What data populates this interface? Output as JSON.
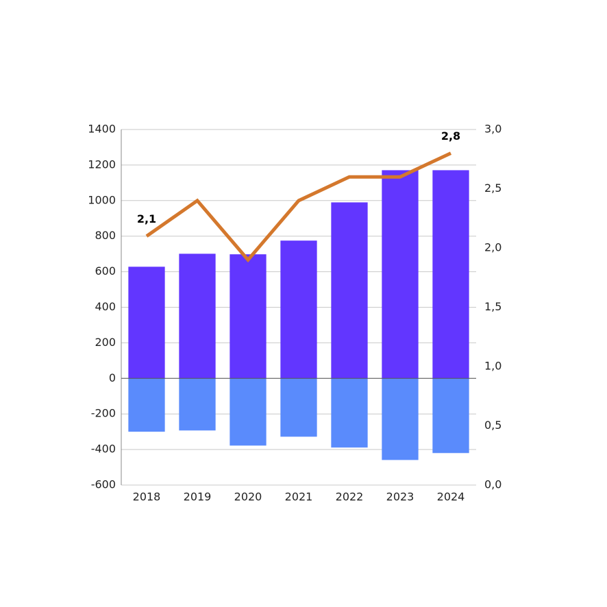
{
  "chart_data": {
    "type": "bar",
    "categories": [
      "2018",
      "2019",
      "2020",
      "2021",
      "2022",
      "2023",
      "2024"
    ],
    "series": [
      {
        "type": "bar",
        "color": "#6236ff",
        "values": [
          628,
          701,
          698,
          775,
          990,
          1171,
          1171
        ]
      },
      {
        "type": "bar",
        "color": "#5a8bfc",
        "values": [
          -300,
          -293,
          -378,
          -328,
          -389,
          -459,
          -420
        ]
      },
      {
        "type": "line",
        "axis": "y2",
        "color": "#d4782d",
        "values": [
          2.1,
          2.4,
          1.9,
          2.4,
          2.6,
          2.6,
          2.8
        ],
        "value_labels": [
          "2,1",
          null,
          null,
          null,
          null,
          null,
          "2,8"
        ]
      }
    ],
    "ylim": [
      -600,
      1400
    ],
    "yticks": [
      -600,
      -400,
      -200,
      0,
      200,
      400,
      600,
      800,
      1000,
      1200,
      1400
    ],
    "y2lim": [
      0,
      3
    ],
    "y2ticks": [
      {
        "value": 0,
        "label": "0,0"
      },
      {
        "value": 0.5,
        "label": "0,5"
      },
      {
        "value": 1,
        "label": "1,0"
      },
      {
        "value": 1.5,
        "label": "1,5"
      },
      {
        "value": 2,
        "label": "2,0"
      },
      {
        "value": 2.5,
        "label": "2,5"
      },
      {
        "value": 3,
        "label": "3,0"
      }
    ],
    "grid": true
  }
}
